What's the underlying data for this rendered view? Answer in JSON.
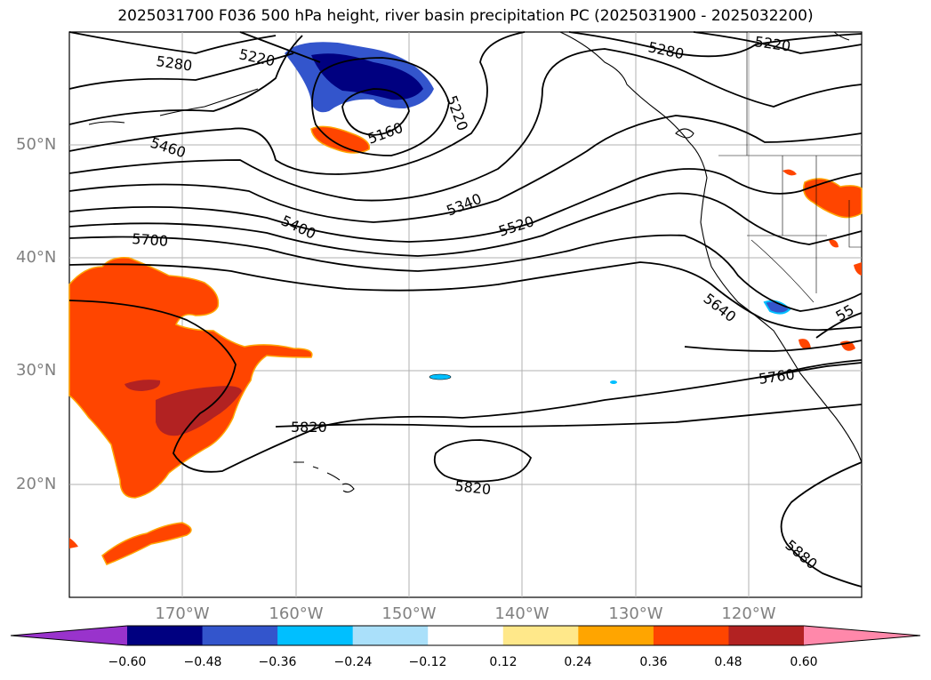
{
  "title": "2025031700 F036 500 hPa height, river basin precipitation PC (2025031900 - 2025032200)",
  "map": {
    "lat_labels": [
      "50°N",
      "40°N",
      "30°N",
      "20°N"
    ],
    "lon_labels": [
      "170°W",
      "160°W",
      "150°W",
      "140°W",
      "130°W",
      "120°W"
    ],
    "contour_labels": [
      "5280",
      "5220",
      "5280",
      "5220",
      "5160",
      "5220",
      "5460",
      "5340",
      "5400",
      "5520",
      "5700",
      "5640",
      "5760",
      "5820",
      "5820",
      "5880",
      "55"
    ],
    "contour_color": "#000000",
    "gridline_color": "#b0b0b0"
  },
  "colorbar": {
    "tick_labels": [
      "−0.60",
      "−0.48",
      "−0.36",
      "−0.24",
      "−0.12",
      "0.12",
      "0.24",
      "0.36",
      "0.48",
      "0.60"
    ],
    "colors": [
      "#9933cc",
      "#000080",
      "#3355cc",
      "#00bfff",
      "#aae0fa",
      "#ffffff",
      "#ffe88a",
      "#ffa500",
      "#ff4500",
      "#b22222",
      "#ff88aa"
    ]
  }
}
